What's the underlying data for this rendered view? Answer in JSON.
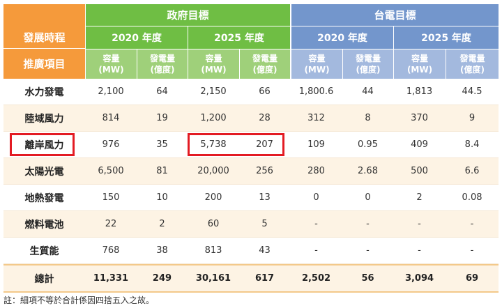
{
  "header": {
    "row_label_top": "發展時程",
    "row_label_bottom": "推廣項目",
    "gov_target": "政府目標",
    "taipower_target": "台電目標",
    "years": [
      "2020 年度",
      "2025 年度",
      "2020 年度",
      "2025 年度"
    ],
    "capacity": "容量\n(MW)",
    "generation": "發電量\n(億度)"
  },
  "rows": [
    {
      "name": "水力發電",
      "values": [
        "2,100",
        "64",
        "2,150",
        "66",
        "1,800.6",
        "44",
        "1,813",
        "44.5"
      ]
    },
    {
      "name": "陸域風力",
      "values": [
        "814",
        "19",
        "1,200",
        "28",
        "312",
        "8",
        "370",
        "9"
      ]
    },
    {
      "name": "離岸風力",
      "values": [
        "976",
        "35",
        "5,738",
        "207",
        "109",
        "0.95",
        "409",
        "8.4"
      ]
    },
    {
      "name": "太陽光電",
      "values": [
        "6,500",
        "81",
        "20,000",
        "256",
        "280",
        "2.68",
        "500",
        "6.6"
      ]
    },
    {
      "name": "地熱發電",
      "values": [
        "150",
        "10",
        "200",
        "13",
        "0",
        "0",
        "2",
        "0.08"
      ]
    },
    {
      "name": "燃料電池",
      "values": [
        "22",
        "2",
        "60",
        "5",
        "-",
        "-",
        "-",
        "-"
      ]
    },
    {
      "name": "生質能",
      "values": [
        "768",
        "38",
        "813",
        "43",
        "-",
        "-",
        "-",
        "-"
      ]
    }
  ],
  "total": {
    "name": "總計",
    "values": [
      "11,331",
      "249",
      "30,161",
      "617",
      "2,502",
      "56",
      "3,094",
      "69"
    ]
  },
  "footnote": "註：細項不等於合計係因四捨五入之故。",
  "colors": {
    "orange": "#f59a3b",
    "green": "#6fbe44",
    "blue": "#7396cc",
    "highlight": "#e31b23"
  }
}
